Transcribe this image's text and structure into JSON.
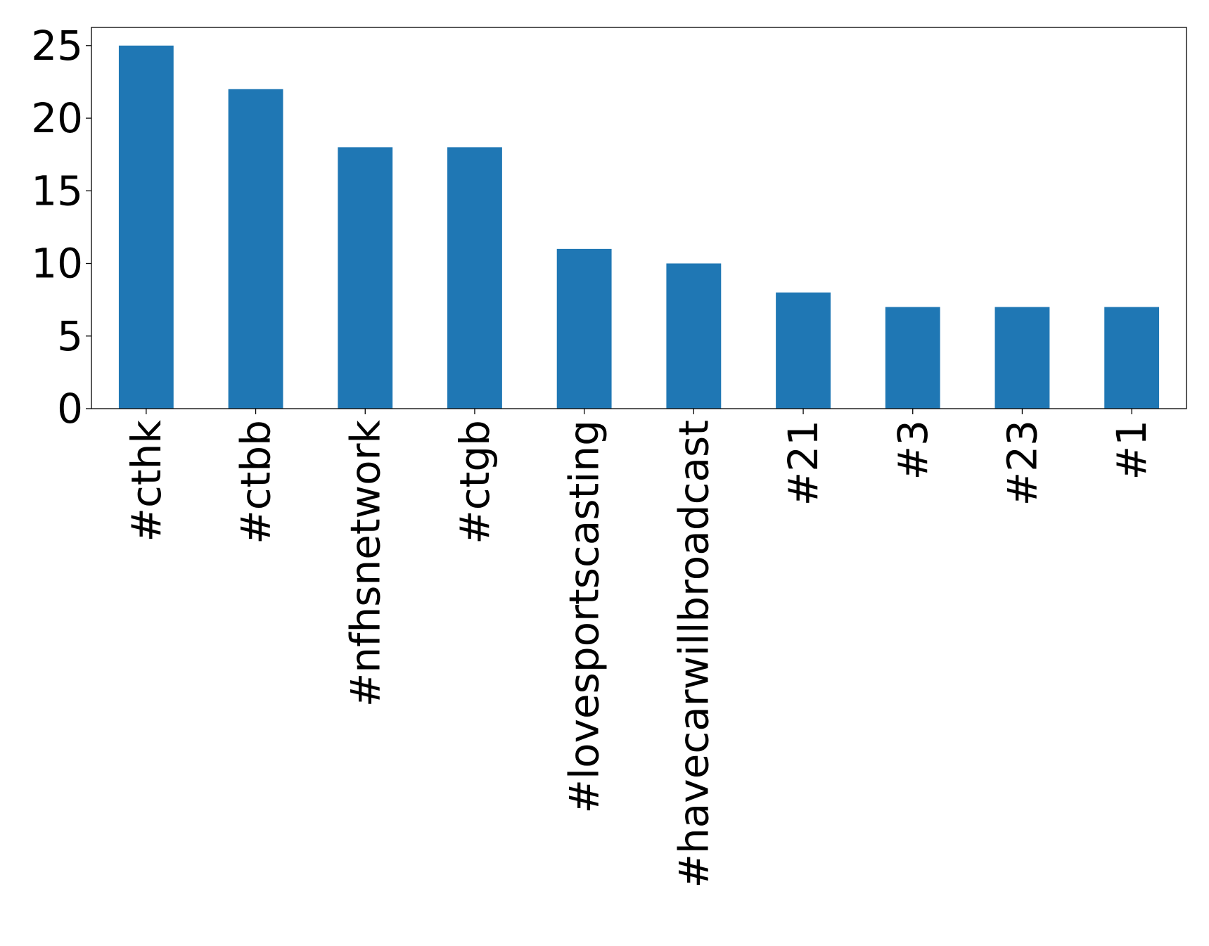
{
  "chart_data": {
    "type": "bar",
    "title": "",
    "xlabel": "",
    "ylabel": "",
    "categories": [
      "#cthk",
      "#ctbb",
      "#nfhsnetwork",
      "#ctgb",
      "#lovesportscasting",
      "#havecarwillbroadcast",
      "#21",
      "#3",
      "#23",
      "#1"
    ],
    "values": [
      25,
      22,
      18,
      18,
      11,
      10,
      8,
      7,
      7,
      7
    ],
    "ylim": [
      0,
      26.25
    ],
    "yticks": [
      0,
      5,
      10,
      15,
      20,
      25
    ],
    "grid": false,
    "legend": "none",
    "bar_color": "#1f77b4"
  }
}
